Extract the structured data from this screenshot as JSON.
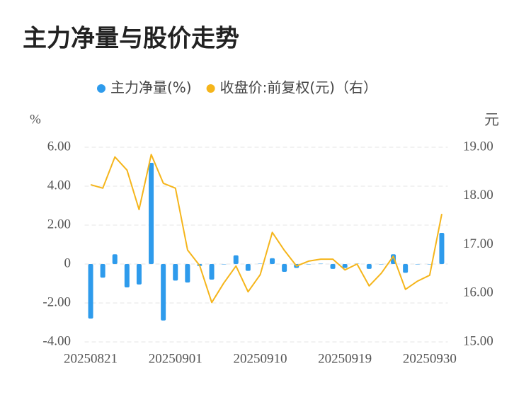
{
  "chart_data": {
    "type": "bar-line",
    "title": "主力净量与股价走势",
    "y_label": "%",
    "y2_label": "元",
    "categories": [
      "20250821",
      null,
      null,
      null,
      null,
      null,
      null,
      "20250901",
      null,
      null,
      null,
      null,
      null,
      null,
      "20250910",
      null,
      null,
      null,
      null,
      null,
      null,
      "20250919",
      null,
      null,
      null,
      null,
      null,
      null,
      "20250930",
      null
    ],
    "series": [
      {
        "name": "主力净量(%)",
        "color": "#2e9bec",
        "type": "bar",
        "values": [
          -2.8,
          -0.7,
          0.5,
          -1.2,
          -1.05,
          5.2,
          -2.9,
          -0.85,
          -0.95,
          -0.1,
          -0.8,
          -0.02,
          0.45,
          -0.35,
          0.02,
          0.3,
          -0.4,
          -0.2,
          -0.02,
          0.02,
          -0.25,
          -0.2,
          0.02,
          -0.25,
          -0.02,
          0.5,
          -0.45,
          -0.02,
          -0.02,
          1.6
        ]
      },
      {
        "name": "收盘价:前复权(元)（右）",
        "color": "#f5b51b",
        "type": "line",
        "axis": "y2",
        "values": [
          18.23,
          18.16,
          18.8,
          18.53,
          17.72,
          18.85,
          18.26,
          18.16,
          16.89,
          16.57,
          15.81,
          16.21,
          16.56,
          16.03,
          16.38,
          17.25,
          16.88,
          16.56,
          16.66,
          16.7,
          16.7,
          16.48,
          16.6,
          16.15,
          16.41,
          16.76,
          16.08,
          16.25,
          16.37,
          17.63
        ]
      }
    ],
    "ylim": [
      -4,
      6
    ],
    "yticks": [
      {
        "value": -4,
        "label": "-4.00"
      },
      {
        "value": -2,
        "label": "-2.00"
      },
      0,
      {
        "value": 2,
        "label": "2.00"
      },
      {
        "value": 4,
        "label": "4.00"
      },
      {
        "value": 6,
        "label": "6.00"
      }
    ],
    "y2lim": [
      15,
      19
    ],
    "y2ticks": [
      {
        "value": 15,
        "label": "15.00"
      },
      {
        "value": 16,
        "label": "16.00"
      },
      {
        "value": 17,
        "label": "17.00"
      },
      {
        "value": 18,
        "label": "18.00"
      },
      {
        "value": 19,
        "label": "19.00"
      }
    ],
    "grid": true
  }
}
